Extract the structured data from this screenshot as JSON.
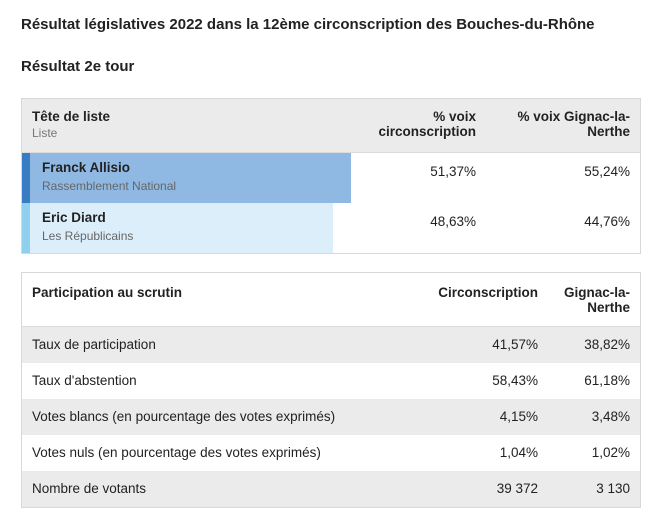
{
  "title": "Résultat législatives 2022 dans la 12ème circonscription des Bouches-du-Rhône",
  "subtitle": "Résultat 2e tour",
  "results_table": {
    "col_head": "Tête de liste",
    "col_head_sub": "Liste",
    "col_circ": "% voix circonscription",
    "col_town": "% voix Gignac-la-Nerthe",
    "rows": [
      {
        "name": "Franck Allisio",
        "party": "Rassemblement National",
        "circ": "51,37%",
        "town": "55,24%",
        "share": 51.37,
        "bar_color": "#8fb9e3",
        "stripe_color": "#3a7cc4"
      },
      {
        "name": "Eric Diard",
        "party": "Les Républicains",
        "circ": "48,63%",
        "town": "44,76%",
        "share": 48.63,
        "bar_color": "#dceefa",
        "stripe_color": "#8ed0ee"
      }
    ]
  },
  "participation_table": {
    "col_head": "Participation au scrutin",
    "col_circ": "Circonscription",
    "col_town": "Gignac-la-Nerthe",
    "rows": [
      {
        "label": "Taux de participation",
        "circ": "41,57%",
        "town": "38,82%"
      },
      {
        "label": "Taux d'abstention",
        "circ": "58,43%",
        "town": "61,18%"
      },
      {
        "label": "Votes blancs (en pourcentage des votes exprimés)",
        "circ": "4,15%",
        "town": "3,48%"
      },
      {
        "label": "Votes nuls (en pourcentage des votes exprimés)",
        "circ": "1,04%",
        "town": "1,02%"
      },
      {
        "label": "Nombre de votants",
        "circ": "39 372",
        "town": "3 130"
      }
    ]
  }
}
